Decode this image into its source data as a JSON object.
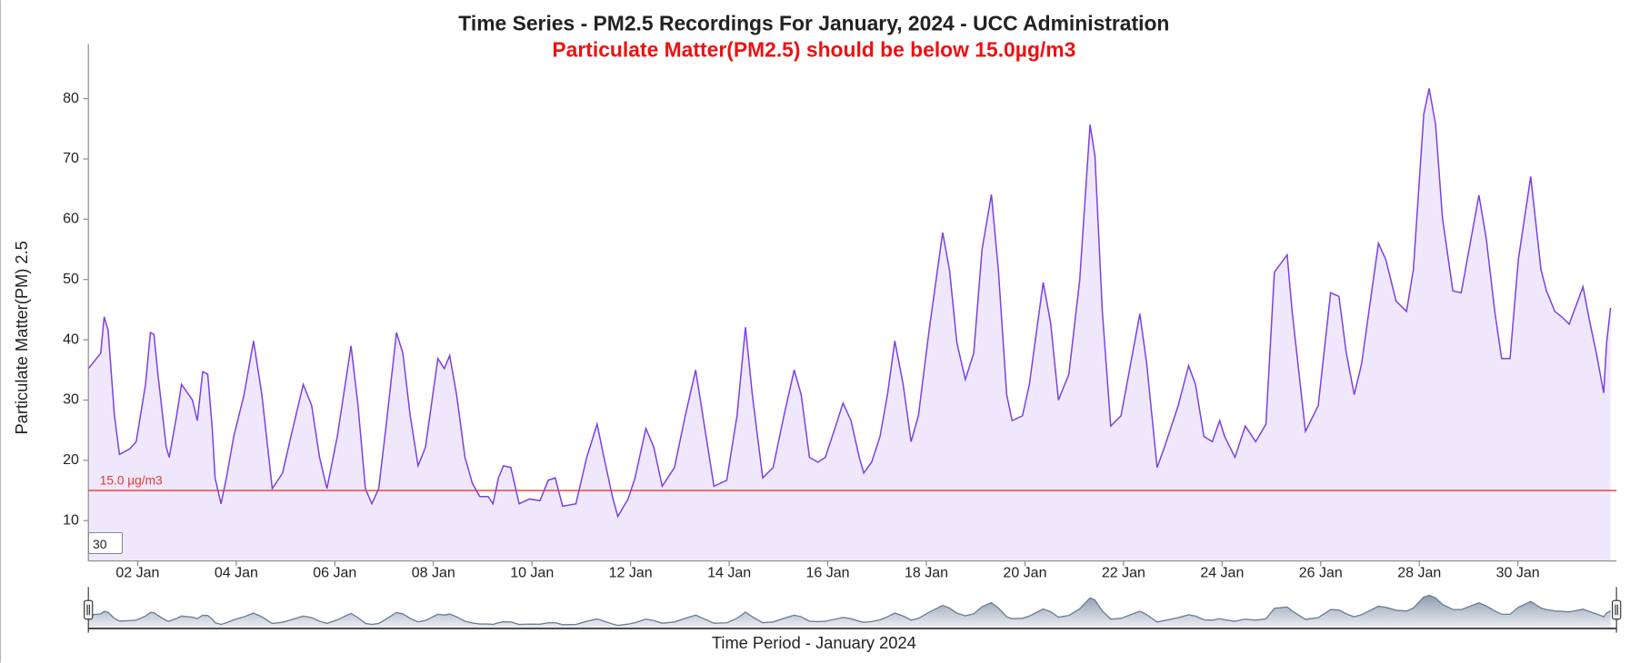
{
  "chart_data": {
    "type": "area",
    "title": "Time Series - PM2.5 Recordings For January, 2024 - UCC Administration",
    "subtitle": "Particulate Matter(PM2.5) should be below 15.0µg/m3",
    "y_label": "Particulate Matter(PM) 2.5",
    "x_label": "Time Period - January 2024",
    "color": "#7b3fe4",
    "fill_color": "#efe8fc",
    "x": [
      1.0,
      1.25,
      1.32,
      1.4,
      1.53,
      1.63,
      1.84,
      1.97,
      2.16,
      2.26,
      2.33,
      2.41,
      2.58,
      2.64,
      2.79,
      2.89,
      3.11,
      3.21,
      3.32,
      3.42,
      3.51,
      3.57,
      3.69,
      3.8,
      3.95,
      4.16,
      4.35,
      4.52,
      4.73,
      4.94,
      5.11,
      5.36,
      5.53,
      5.69,
      5.84,
      6.05,
      6.33,
      6.47,
      6.62,
      6.75,
      6.89,
      7.04,
      7.25,
      7.38,
      7.53,
      7.69,
      7.84,
      8.09,
      8.22,
      8.33,
      8.47,
      8.64,
      8.79,
      8.94,
      9.11,
      9.21,
      9.32,
      9.42,
      9.57,
      9.74,
      9.95,
      10.16,
      10.33,
      10.47,
      10.62,
      10.89,
      11.11,
      11.32,
      11.46,
      11.63,
      11.74,
      11.95,
      12.09,
      12.31,
      12.47,
      12.64,
      12.89,
      13.11,
      13.32,
      13.53,
      13.69,
      13.95,
      14.16,
      14.33,
      14.47,
      14.68,
      14.89,
      15.11,
      15.32,
      15.46,
      15.63,
      15.8,
      15.95,
      16.16,
      16.31,
      16.47,
      16.64,
      16.73,
      16.89,
      17.06,
      17.21,
      17.36,
      17.53,
      17.69,
      17.84,
      18.05,
      18.33,
      18.47,
      18.62,
      18.79,
      18.96,
      19.13,
      19.32,
      19.46,
      19.63,
      19.74,
      19.95,
      20.09,
      20.37,
      20.52,
      20.68,
      20.89,
      21.11,
      21.32,
      21.42,
      21.57,
      21.74,
      21.95,
      22.33,
      22.47,
      22.68,
      22.83,
      23.11,
      23.32,
      23.46,
      23.63,
      23.8,
      23.95,
      24.05,
      24.26,
      24.47,
      24.68,
      24.89,
      25.06,
      25.32,
      25.42,
      25.69,
      25.95,
      26.2,
      26.37,
      26.52,
      26.68,
      26.83,
      27.17,
      27.32,
      27.53,
      27.74,
      27.88,
      28.09,
      28.2,
      28.33,
      28.47,
      28.68,
      28.85,
      29.21,
      29.36,
      29.53,
      29.67,
      29.84,
      30.01,
      30.26,
      30.47,
      30.58,
      30.75,
      30.89,
      31.04,
      31.32,
      31.46,
      31.59,
      31.74,
      31.8,
      31.88
    ],
    "values": [
      35.2,
      37.8,
      43.8,
      41.6,
      27.4,
      21.0,
      21.9,
      23.1,
      32.6,
      41.2,
      40.9,
      34.3,
      22.2,
      20.5,
      27.4,
      32.6,
      30.0,
      26.6,
      34.7,
      34.3,
      25.7,
      17.1,
      12.8,
      17.1,
      24.0,
      30.9,
      39.8,
      30.9,
      15.3,
      17.9,
      24.0,
      32.6,
      29.1,
      20.5,
      15.3,
      24.0,
      39.0,
      29.1,
      15.3,
      12.8,
      15.3,
      25.7,
      41.2,
      37.8,
      27.4,
      19.1,
      22.2,
      36.9,
      35.2,
      37.4,
      30.9,
      20.5,
      16.2,
      14.0,
      14.0,
      12.8,
      17.1,
      19.1,
      18.8,
      12.8,
      13.6,
      13.3,
      16.7,
      17.1,
      12.4,
      12.8,
      20.5,
      26.0,
      20.5,
      14.0,
      10.7,
      13.6,
      17.1,
      25.3,
      22.2,
      15.7,
      18.8,
      27.4,
      35.0,
      24.0,
      15.7,
      16.7,
      27.4,
      42.1,
      30.9,
      17.1,
      18.8,
      27.4,
      35.0,
      30.9,
      20.5,
      19.7,
      20.5,
      25.7,
      29.5,
      26.6,
      20.5,
      17.9,
      19.7,
      24.0,
      30.9,
      39.8,
      32.6,
      23.1,
      27.4,
      41.2,
      57.8,
      51.6,
      39.5,
      33.4,
      37.8,
      55.0,
      64.1,
      51.6,
      30.9,
      26.6,
      27.4,
      32.6,
      49.5,
      42.9,
      30.0,
      34.3,
      49.8,
      75.7,
      70.5,
      44.7,
      25.7,
      27.4,
      44.3,
      36.0,
      18.8,
      22.2,
      29.1,
      35.7,
      32.6,
      24.0,
      23.1,
      26.6,
      24.0,
      20.5,
      25.7,
      23.1,
      26.0,
      51.2,
      54.1,
      44.7,
      24.8,
      29.1,
      47.8,
      47.2,
      37.8,
      30.9,
      36.0,
      56.0,
      53.3,
      46.4,
      44.7,
      51.6,
      77.4,
      81.7,
      75.7,
      60.2,
      48.1,
      47.8,
      64.0,
      56.7,
      44.7,
      36.9,
      36.9,
      53.3,
      67.1,
      51.6,
      48.1,
      44.7,
      43.8,
      42.6,
      48.8,
      42.9,
      37.8,
      31.2,
      39.5,
      45.3
    ],
    "xlim": [
      1,
      32
    ],
    "xticks": [
      {
        "value": 2,
        "label": "02 Jan"
      },
      {
        "value": 4,
        "label": "04 Jan"
      },
      {
        "value": 6,
        "label": "06 Jan"
      },
      {
        "value": 8,
        "label": "08 Jan"
      },
      {
        "value": 10,
        "label": "10 Jan"
      },
      {
        "value": 12,
        "label": "12 Jan"
      },
      {
        "value": 14,
        "label": "14 Jan"
      },
      {
        "value": 16,
        "label": "16 Jan"
      },
      {
        "value": 18,
        "label": "18 Jan"
      },
      {
        "value": 20,
        "label": "20 Jan"
      },
      {
        "value": 22,
        "label": "22 Jan"
      },
      {
        "value": 24,
        "label": "24 Jan"
      },
      {
        "value": 26,
        "label": "26 Jan"
      },
      {
        "value": 28,
        "label": "28 Jan"
      },
      {
        "value": 30,
        "label": "30 Jan"
      }
    ],
    "ylim": [
      3.3,
      89.1
    ],
    "yticks": [
      10,
      20,
      30,
      40,
      50,
      60,
      70,
      80
    ],
    "grid": false,
    "threshold": {
      "value": 15,
      "label": "15.0 µg/m3",
      "color": "#e53935"
    }
  },
  "controls": {
    "period": "30"
  }
}
